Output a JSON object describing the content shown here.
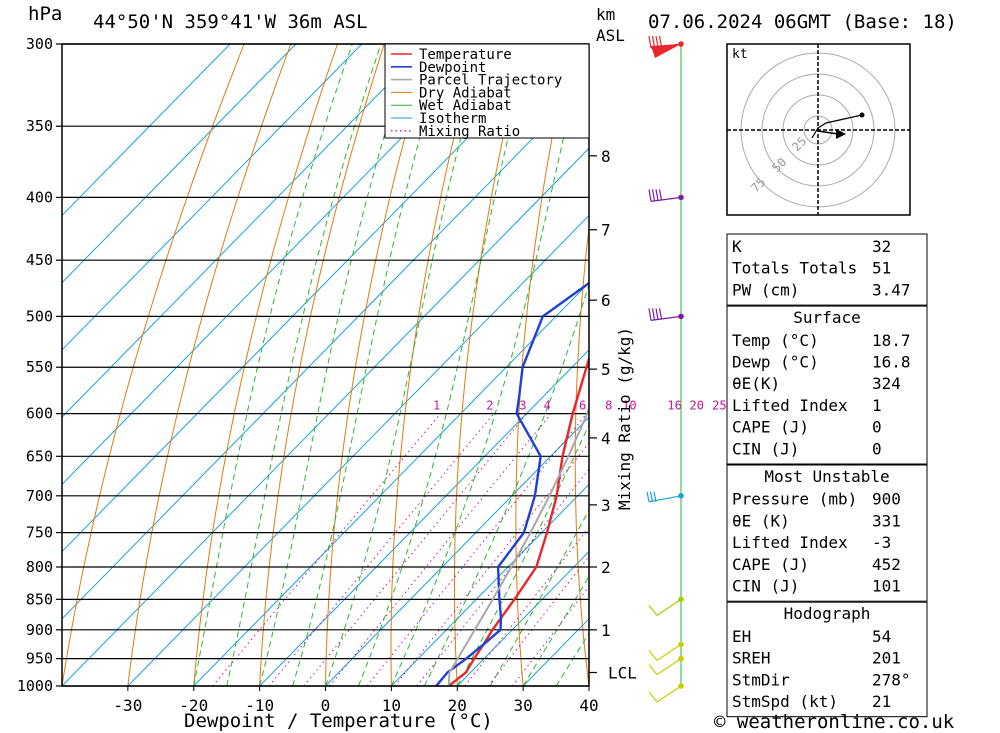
{
  "header": {
    "pressure_unit": "hPa",
    "location": "44°50'N 359°41'W 36m ASL",
    "km_unit": "km",
    "asl_unit": "ASL",
    "date": "07.06.2024 06GMT (Base: 18)"
  },
  "footer": {
    "credit": "© weatheronline.co.uk"
  },
  "colors": {
    "temperature": "#e8262b",
    "dewpoint": "#1f3fd8",
    "parcel": "#a8a8a8",
    "dry_adiabat": "#e07a10",
    "wet_adiabat": "#2fb42f",
    "isotherm": "#16a2dd",
    "mixing_ratio": "#c0189c"
  },
  "chart_data": {
    "type": "line",
    "title": "44°50'N 359°41'W 36m ASL",
    "xlabel": "Dewpoint / Temperature (°C)",
    "ylabel": "hPa",
    "right_label": "Mixing Ratio (g/kg)",
    "y_scale": "log",
    "xlim": [
      -40,
      40
    ],
    "ylim": [
      1000,
      300
    ],
    "x_ticks": [
      -30,
      -20,
      -10,
      0,
      10,
      20,
      30,
      40
    ],
    "pressure_levels": [
      300,
      350,
      400,
      450,
      500,
      550,
      600,
      650,
      700,
      750,
      800,
      850,
      900,
      950,
      1000
    ],
    "height_ticks": [
      {
        "label": "1",
        "p": 900
      },
      {
        "label": "2",
        "p": 800
      },
      {
        "label": "3",
        "p": 712
      },
      {
        "label": "4",
        "p": 628
      },
      {
        "label": "5",
        "p": 552
      },
      {
        "label": "6",
        "p": 485
      },
      {
        "label": "7",
        "p": 425
      },
      {
        "label": "8",
        "p": 370
      }
    ],
    "lcl": {
      "label": "LCL",
      "p": 975
    },
    "mixing_ratio_labels": [
      "1",
      "2",
      "3",
      "4",
      "6",
      "8",
      "10",
      "16",
      "20",
      "25"
    ],
    "legend": [
      "Temperature",
      "Dewpoint",
      "Parcel Trajectory",
      "Dry Adiabat",
      "Wet Adiabat",
      "Isotherm",
      "Mixing Ratio"
    ],
    "series": [
      {
        "name": "Temperature",
        "points": [
          [
            1000,
            18.7
          ],
          [
            975,
            19.3
          ],
          [
            950,
            18.5
          ],
          [
            925,
            17.8
          ],
          [
            900,
            17.0
          ],
          [
            850,
            15.8
          ],
          [
            800,
            14.3
          ],
          [
            750,
            10.8
          ],
          [
            700,
            6.8
          ],
          [
            650,
            1.8
          ],
          [
            600,
            -3.0
          ],
          [
            550,
            -7.8
          ],
          [
            500,
            -13.0
          ],
          [
            450,
            -19.0
          ],
          [
            420,
            -22.5
          ],
          [
            400,
            -24.0
          ],
          [
            380,
            -27.2
          ],
          [
            350,
            -31.5
          ],
          [
            320,
            -36.5
          ],
          [
            300,
            -39.5
          ]
        ]
      },
      {
        "name": "Dewpoint",
        "points": [
          [
            1000,
            16.8
          ],
          [
            975,
            16.5
          ],
          [
            950,
            17.3
          ],
          [
            925,
            17.8
          ],
          [
            900,
            18.2
          ],
          [
            880,
            16.5
          ],
          [
            850,
            13.5
          ],
          [
            800,
            8.5
          ],
          [
            750,
            7.3
          ],
          [
            700,
            3.5
          ],
          [
            650,
            -1.5
          ],
          [
            600,
            -11.5
          ],
          [
            580,
            -13.8
          ],
          [
            550,
            -17.5
          ],
          [
            500,
            -22.0
          ],
          [
            450,
            -18.5
          ],
          [
            420,
            -21.0
          ],
          [
            400,
            -23.5
          ],
          [
            380,
            -26.5
          ],
          [
            350,
            -31.5
          ],
          [
            320,
            -37.0
          ],
          [
            300,
            -41.0
          ]
        ]
      },
      {
        "name": "Parcel Trajectory",
        "points": [
          [
            1000,
            18.7
          ],
          [
            975,
            16.8
          ],
          [
            950,
            16.0
          ],
          [
            900,
            14.3
          ],
          [
            850,
            12.5
          ],
          [
            800,
            10.5
          ],
          [
            750,
            8.3
          ],
          [
            700,
            5.7
          ],
          [
            650,
            2.7
          ],
          [
            600,
            -0.8
          ],
          [
            550,
            -5.2
          ],
          [
            500,
            -10.7
          ],
          [
            450,
            -17.2
          ],
          [
            400,
            -25.0
          ],
          [
            350,
            -34.0
          ],
          [
            300,
            -44.0
          ]
        ]
      }
    ],
    "hodograph": {
      "unit": "kt",
      "rings": [
        "25",
        "50",
        "75"
      ],
      "storm_motion": {
        "dir": 278,
        "speed_kt": 21
      }
    },
    "wind_barbs": [
      {
        "p": 300,
        "color": "#e8262b"
      },
      {
        "p": 400,
        "color": "#7a1fa3"
      },
      {
        "p": 500,
        "color": "#7a1fa3"
      },
      {
        "p": 700,
        "color": "#16a2dd"
      },
      {
        "p": 850,
        "color": "#aacc00"
      },
      {
        "p": 925,
        "color": "#cccc00"
      },
      {
        "p": 950,
        "color": "#cccc00"
      },
      {
        "p": 1000,
        "color": "#cccc00"
      }
    ]
  },
  "indices": [
    {
      "label": "K",
      "value": "32"
    },
    {
      "label": "Totals Totals",
      "value": "51"
    },
    {
      "label": "PW (cm)",
      "value": "3.47"
    }
  ],
  "surface": {
    "title": "Surface",
    "rows": [
      {
        "label": "Temp (°C)",
        "value": "18.7"
      },
      {
        "label": "Dewp (°C)",
        "value": "16.8"
      },
      {
        "label": "θE(K)",
        "value": "324"
      },
      {
        "label": "Lifted Index",
        "value": "1"
      },
      {
        "label": "CAPE (J)",
        "value": "0"
      },
      {
        "label": "CIN (J)",
        "value": "0"
      }
    ]
  },
  "most_unstable": {
    "title": "Most Unstable",
    "rows": [
      {
        "label": "Pressure (mb)",
        "value": "900"
      },
      {
        "label": "θE (K)",
        "value": "331"
      },
      {
        "label": "Lifted Index",
        "value": "-3"
      },
      {
        "label": "CAPE (J)",
        "value": "452"
      },
      {
        "label": "CIN (J)",
        "value": "101"
      }
    ]
  },
  "hodograph_table": {
    "title": "Hodograph",
    "rows": [
      {
        "label": "EH",
        "value": "54"
      },
      {
        "label": "SREH",
        "value": "201"
      },
      {
        "label": "StmDir",
        "value": "278°"
      },
      {
        "label": "StmSpd (kt)",
        "value": "21"
      }
    ]
  }
}
